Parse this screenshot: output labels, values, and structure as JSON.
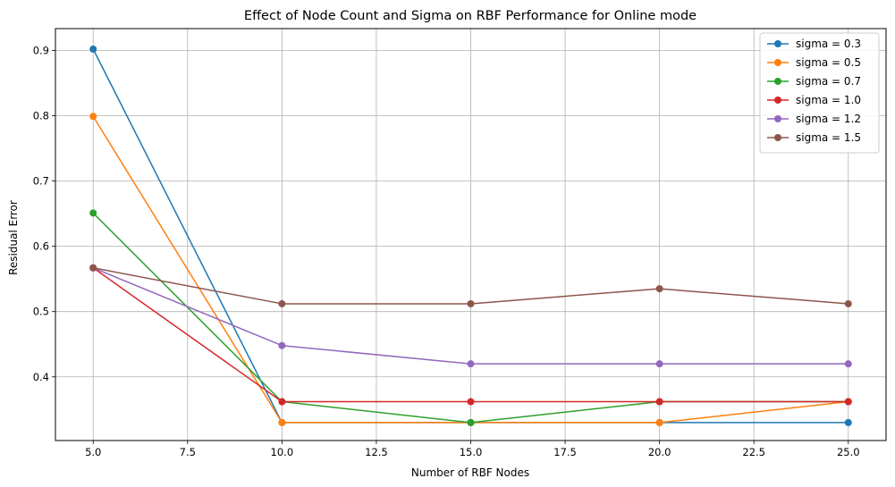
{
  "chart_data": {
    "type": "line",
    "title": "Effect of Node Count and Sigma on RBF Performance for Online mode",
    "xlabel": "Number of RBF Nodes",
    "ylabel": "Residual Error",
    "x": [
      5,
      10,
      15,
      20,
      25
    ],
    "xlim": [
      4.0,
      26.0
    ],
    "ylim": [
      0.3025,
      0.9335
    ],
    "xticks": [
      5.0,
      7.5,
      10.0,
      12.5,
      15.0,
      17.5,
      20.0,
      22.5,
      25.0
    ],
    "xtick_labels": [
      "5.0",
      "7.5",
      "10.0",
      "12.5",
      "15.0",
      "17.5",
      "20.0",
      "22.5",
      "25.0"
    ],
    "yticks": [
      0.4,
      0.5,
      0.6,
      0.7,
      0.8,
      0.9
    ],
    "ytick_labels": [
      "0.4",
      "0.5",
      "0.6",
      "0.7",
      "0.8",
      "0.9"
    ],
    "grid": true,
    "legend_position": "top-right",
    "marker": "circle",
    "series": [
      {
        "name": "sigma = 0.3",
        "color": "#1f77b4",
        "values": [
          0.902,
          0.33,
          0.33,
          0.33,
          0.33
        ]
      },
      {
        "name": "sigma = 0.5",
        "color": "#ff7f0e",
        "values": [
          0.799,
          0.33,
          0.33,
          0.33,
          0.362
        ]
      },
      {
        "name": "sigma = 0.7",
        "color": "#2ca02c",
        "values": [
          0.651,
          0.362,
          0.33,
          0.362,
          0.362
        ]
      },
      {
        "name": "sigma = 1.0",
        "color": "#d62728",
        "values": [
          0.567,
          0.362,
          0.362,
          0.362,
          0.362
        ]
      },
      {
        "name": "sigma = 1.2",
        "color": "#9467bd",
        "values": [
          0.567,
          0.448,
          0.42,
          0.42,
          0.42
        ]
      },
      {
        "name": "sigma = 1.5",
        "color": "#8c564b",
        "values": [
          0.567,
          0.512,
          0.512,
          0.535,
          0.512
        ]
      }
    ]
  }
}
